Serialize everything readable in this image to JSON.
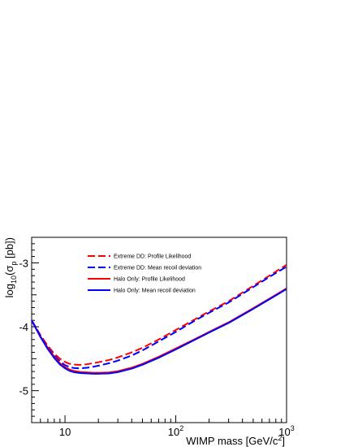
{
  "chart_data": {
    "type": "line",
    "xlabel": "WIMP mass [GeV/c^2]",
    "ylabel": "log10(σp [pb])",
    "xscale": "log",
    "xlim": [
      5,
      1000
    ],
    "ylim": [
      -5.5,
      -2.6
    ],
    "grid": false,
    "legend_placement": "top-left",
    "x_tick_labels": [
      {
        "value": 10,
        "base": "10",
        "exp": ""
      },
      {
        "value": 100,
        "base": "10",
        "exp": "2"
      },
      {
        "value": 1000,
        "base": "10",
        "exp": "3"
      }
    ],
    "y_tick_labels": [
      {
        "value": -3,
        "text": "-3"
      },
      {
        "value": -4,
        "text": "-4"
      },
      {
        "value": -5,
        "text": "-5"
      }
    ],
    "series": [
      {
        "name": "Extreme DD: Profile Likelihood",
        "color": "#ff0000",
        "dash": "dashed",
        "x": [
          5,
          6,
          7,
          8,
          9,
          10,
          11,
          12,
          13,
          14,
          16,
          18,
          20,
          25,
          30,
          40,
          50,
          70,
          100,
          150,
          200,
          300,
          500,
          700,
          1000
        ],
        "y": [
          -3.9,
          -4.13,
          -4.3,
          -4.42,
          -4.5,
          -4.55,
          -4.58,
          -4.59,
          -4.595,
          -4.595,
          -4.585,
          -4.57,
          -4.555,
          -4.52,
          -4.48,
          -4.4,
          -4.33,
          -4.2,
          -4.05,
          -3.88,
          -3.76,
          -3.6,
          -3.36,
          -3.2,
          -3.03
        ]
      },
      {
        "name": "Extreme DD: Mean recoil deviation",
        "color": "#0000ff",
        "dash": "dashed",
        "x": [
          5,
          6,
          7,
          8,
          9,
          10,
          11,
          12,
          13,
          14,
          16,
          18,
          20,
          25,
          30,
          40,
          50,
          70,
          100,
          150,
          200,
          300,
          500,
          700,
          1000
        ],
        "y": [
          -3.9,
          -4.14,
          -4.32,
          -4.45,
          -4.54,
          -4.6,
          -4.63,
          -4.645,
          -4.65,
          -4.65,
          -4.64,
          -4.625,
          -4.61,
          -4.57,
          -4.53,
          -4.45,
          -4.37,
          -4.23,
          -4.08,
          -3.9,
          -3.78,
          -3.62,
          -3.38,
          -3.22,
          -3.06
        ]
      },
      {
        "name": "Halo Only: Profile Likelihood",
        "color": "#ff0000",
        "dash": "solid",
        "x": [
          5,
          6,
          7,
          8,
          9,
          10,
          11,
          12,
          13,
          14,
          16,
          18,
          20,
          25,
          30,
          40,
          50,
          70,
          100,
          150,
          200,
          300,
          500,
          700,
          1000
        ],
        "y": [
          -3.9,
          -4.15,
          -4.33,
          -4.47,
          -4.57,
          -4.63,
          -4.67,
          -4.69,
          -4.7,
          -4.71,
          -4.715,
          -4.72,
          -4.72,
          -4.715,
          -4.695,
          -4.64,
          -4.58,
          -4.47,
          -4.34,
          -4.19,
          -4.08,
          -3.93,
          -3.71,
          -3.56,
          -3.4
        ]
      },
      {
        "name": "Halo Only: Mean recoil deviation",
        "color": "#0000ff",
        "dash": "solid",
        "x": [
          5,
          6,
          7,
          8,
          9,
          10,
          11,
          12,
          13,
          14,
          16,
          18,
          20,
          25,
          30,
          40,
          50,
          70,
          100,
          150,
          200,
          300,
          500,
          700,
          1000
        ],
        "y": [
          -3.9,
          -4.16,
          -4.35,
          -4.49,
          -4.59,
          -4.65,
          -4.69,
          -4.71,
          -4.72,
          -4.725,
          -4.73,
          -4.735,
          -4.735,
          -4.73,
          -4.71,
          -4.655,
          -4.595,
          -4.485,
          -4.355,
          -4.2,
          -4.09,
          -3.94,
          -3.72,
          -3.57,
          -3.41
        ]
      }
    ]
  }
}
